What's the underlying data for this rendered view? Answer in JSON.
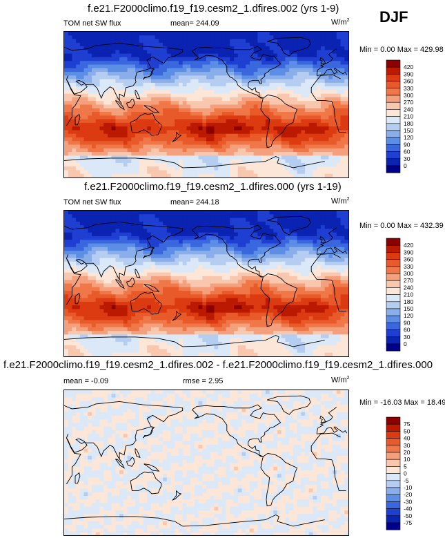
{
  "season": "DJF",
  "colorbar_main": {
    "labels": [
      "420",
      "390",
      "360",
      "330",
      "300",
      "270",
      "240",
      "210",
      "180",
      "150",
      "120",
      "90",
      "60",
      "30",
      "0"
    ],
    "colors": [
      "#8b0000",
      "#bb1a00",
      "#dc3a10",
      "#e85a2a",
      "#f07848",
      "#f5a07c",
      "#f8c7ad",
      "#fbe6d8",
      "#dbe8f8",
      "#b5cdf1",
      "#8aaee9",
      "#5b8ee4",
      "#3a66de",
      "#1f3fd2",
      "#0a23b2",
      "#00008b"
    ]
  },
  "colorbar_diff": {
    "labels": [
      "75",
      "50",
      "40",
      "30",
      "20",
      "10",
      "5",
      "0",
      "-5",
      "-10",
      "-20",
      "-30",
      "-40",
      "-50",
      "-75"
    ],
    "colors": [
      "#8b0000",
      "#bb1a00",
      "#dc3a10",
      "#e85a2a",
      "#f07848",
      "#f5a07c",
      "#f8c7ad",
      "#fbe6d8",
      "#dbe8f8",
      "#b5cdf1",
      "#8aaee9",
      "#5b8ee4",
      "#3a66de",
      "#1f3fd2",
      "#0a23b2",
      "#00008b"
    ]
  },
  "panels": [
    {
      "title": "f.e21.F2000climo.f19_f19.cesm2_1.dfires.002 (yrs 1-9)",
      "left_label": "TOM net SW flux",
      "mean_text": "mean= 244.09",
      "units_base": "W/m",
      "units_exp": "2",
      "minmax": "Min =   0.00 Max = 429.98",
      "field": "absolute"
    },
    {
      "title": "f.e21.F2000climo.f19_f19.cesm2_1.dfires.000 (yrs 1-19)",
      "left_label": "TOM net SW flux",
      "mean_text": "mean= 244.18",
      "units_base": "W/m",
      "units_exp": "2",
      "minmax": "Min =   0.00 Max = 432.39",
      "field": "absolute"
    },
    {
      "title": "f.e21.F2000climo.f19_f19.cesm2_1.dfires.002 - f.e21.F2000climo.f19_f19.cesm2_1.dfires.000",
      "left_label": "mean =  -0.09",
      "mean_text": "rmse =   2.95",
      "units_base": "W/m",
      "units_exp": "2",
      "minmax": "Min = -16.03 Max =  18.49",
      "field": "difference"
    }
  ],
  "chart_data": [
    {
      "type": "heatmap",
      "title": "f.e21.F2000climo.f19_f19.cesm2_1.dfires.002 (yrs 1-9)",
      "variable": "TOM net SW flux",
      "season": "DJF",
      "units": "W/m2",
      "mean": 244.09,
      "min": 0.0,
      "max": 429.98,
      "contour_levels": [
        0,
        30,
        60,
        90,
        120,
        150,
        180,
        210,
        240,
        270,
        300,
        330,
        360,
        390,
        420
      ],
      "zonal_pattern": "low (<90) over Northern Hemisphere high latitudes, highest (360-420) across southern subtropics and Southern Ocean near 30-50S, moderate (180-240) near Antarctica",
      "projection": "cylindrical equidistant, Pacific-centered"
    },
    {
      "type": "heatmap",
      "title": "f.e21.F2000climo.f19_f19.cesm2_1.dfires.000 (yrs 1-19)",
      "variable": "TOM net SW flux",
      "season": "DJF",
      "units": "W/m2",
      "mean": 244.18,
      "min": 0.0,
      "max": 432.39,
      "contour_levels": [
        0,
        30,
        60,
        90,
        120,
        150,
        180,
        210,
        240,
        270,
        300,
        330,
        360,
        390,
        420
      ],
      "zonal_pattern": "similar to panel 1",
      "projection": "cylindrical equidistant, Pacific-centered"
    },
    {
      "type": "heatmap",
      "title": "f.e21.F2000climo.f19_f19.cesm2_1.dfires.002 - f.e21.F2000climo.f19_f19.cesm2_1.dfires.000",
      "variable": "TOM net SW flux difference",
      "season": "DJF",
      "units": "W/m2",
      "mean": -0.09,
      "rmse": 2.95,
      "min": -16.03,
      "max": 18.49,
      "contour_levels": [
        -75,
        -50,
        -40,
        -30,
        -20,
        -10,
        -5,
        0,
        5,
        10,
        20,
        30,
        40,
        50,
        75
      ],
      "zonal_pattern": "near-zero everywhere, alternating light positive (0-5) and light negative (-5-0) patches",
      "projection": "cylindrical equidistant, Pacific-centered"
    }
  ]
}
